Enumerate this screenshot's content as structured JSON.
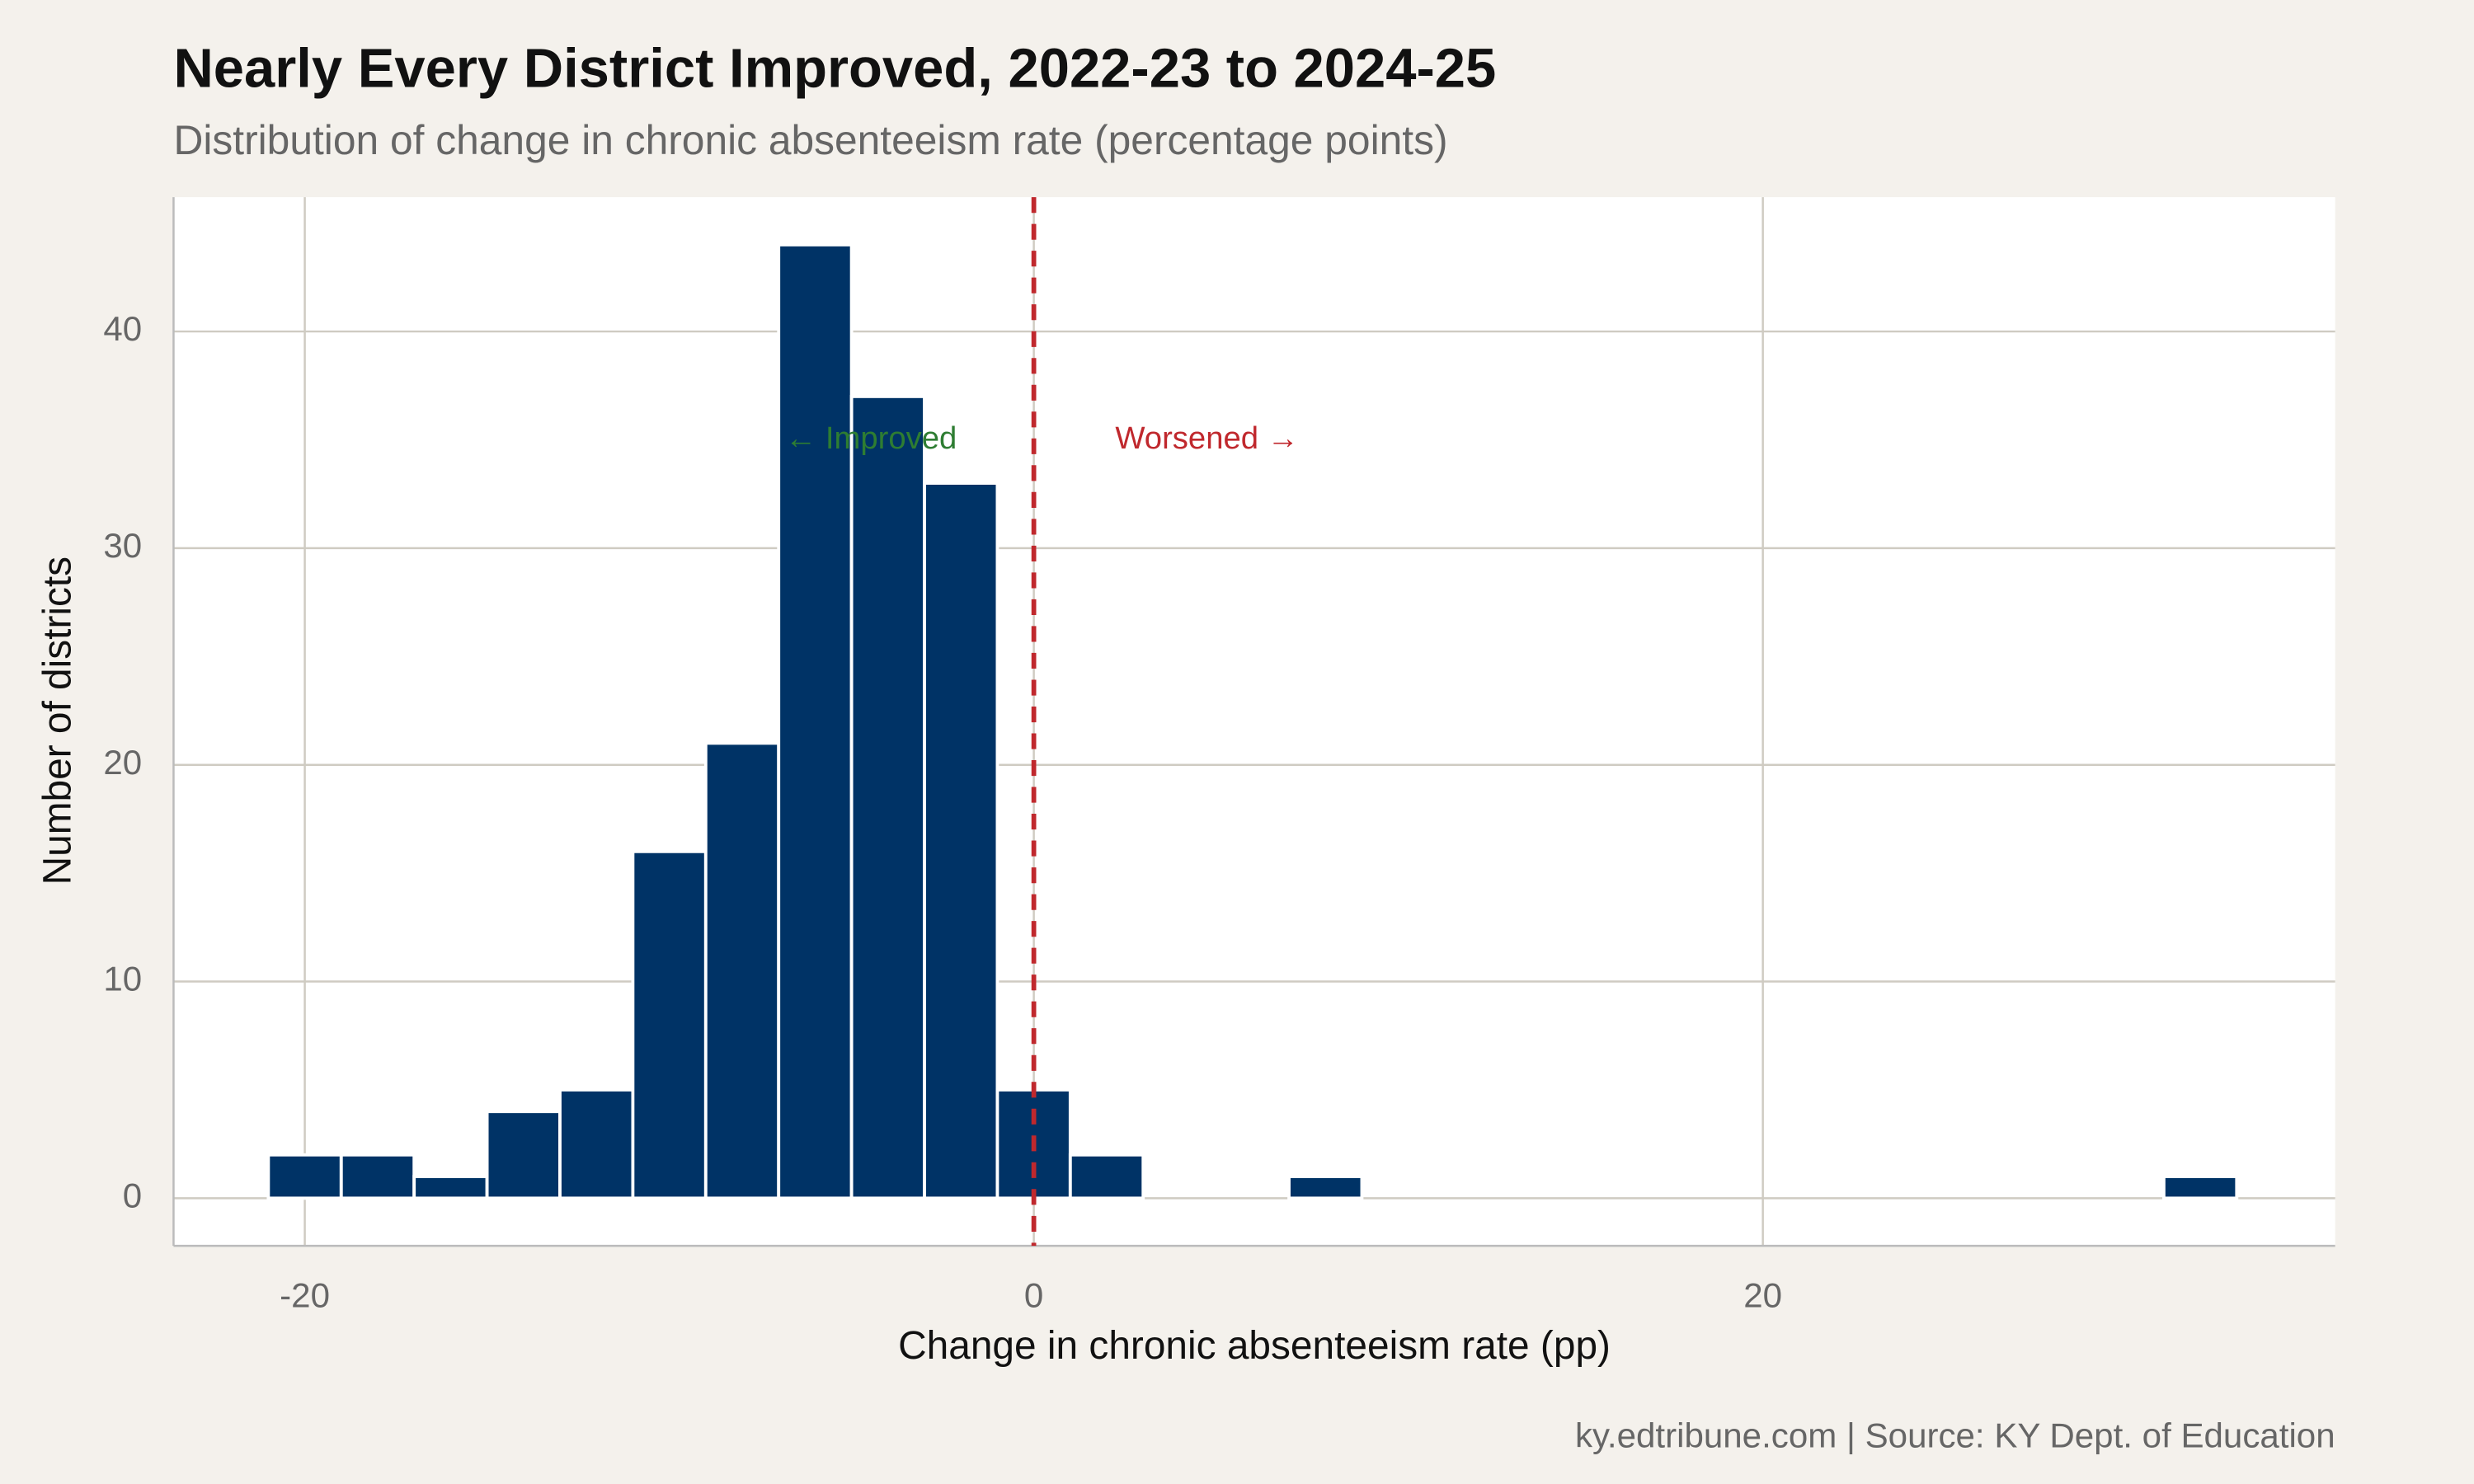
{
  "chart_data": {
    "type": "histogram",
    "title": "Nearly Every District Improved, 2022-23 to 2024-25",
    "subtitle": "Distribution of change in chronic absenteeism rate (percentage points)",
    "x_label": "Change in chronic absenteeism rate (pp)",
    "y_label": "Number of districts",
    "caption": "ky.edtribune.com | Source: KY Dept. of Education",
    "bins": [
      -21,
      -19,
      -17,
      -15,
      -13,
      -11,
      -9,
      -7,
      -5,
      -3,
      -1,
      1,
      3,
      5,
      7,
      9,
      11,
      13,
      15,
      17,
      19,
      21,
      23,
      25,
      27,
      29,
      31,
      33
    ],
    "values": [
      2,
      2,
      1,
      4,
      5,
      16,
      21,
      44,
      37,
      33,
      5,
      2,
      0,
      0,
      1,
      0,
      0,
      0,
      0,
      0,
      0,
      0,
      0,
      0,
      0,
      0,
      1
    ],
    "color": "#003366",
    "xlim": [
      -23.6,
      35.7
    ],
    "ylim": [
      -2.2,
      46.2
    ],
    "xticks": [
      -20,
      0,
      20
    ],
    "yticks": [
      0,
      10,
      20,
      30,
      40
    ],
    "grid": true,
    "reference_line": {
      "x": 0,
      "color": "#c0282d"
    },
    "annotations": [
      {
        "text": "← Improved",
        "color": "#2e7d32"
      },
      {
        "text": "Worsened →",
        "color": "#c0282d"
      }
    ]
  }
}
